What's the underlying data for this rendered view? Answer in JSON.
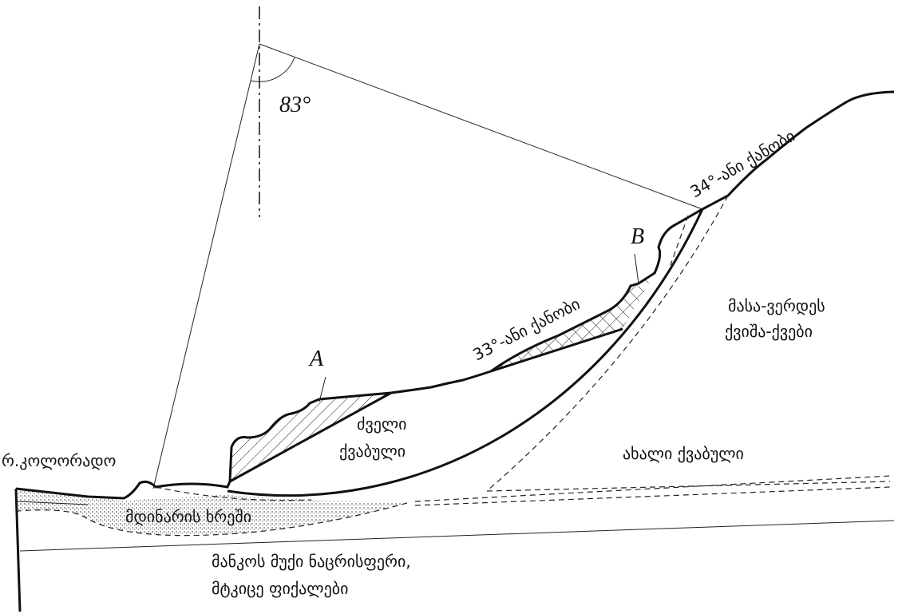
{
  "angle_label": "83°",
  "upper_slope_label": "34°-ანი ქანობი",
  "point_b": "B",
  "sandstone_label": [
    "მასა-ვერდეს",
    "ქვიშა-ქვები"
  ],
  "middle_slope_label": "33°-ანი ქანობი",
  "point_a": "A",
  "old_depression_label": [
    "ძველი",
    "ქვაბული"
  ],
  "new_depression_label": "ახალი ქვაბული",
  "river_label": "რ.კოლორადო",
  "gravel_label": "მდინარის ხრეში",
  "shale_label": [
    "მანკოს მუქი ნაცრისფერი,",
    "მტკიცე ფიქალები"
  ]
}
